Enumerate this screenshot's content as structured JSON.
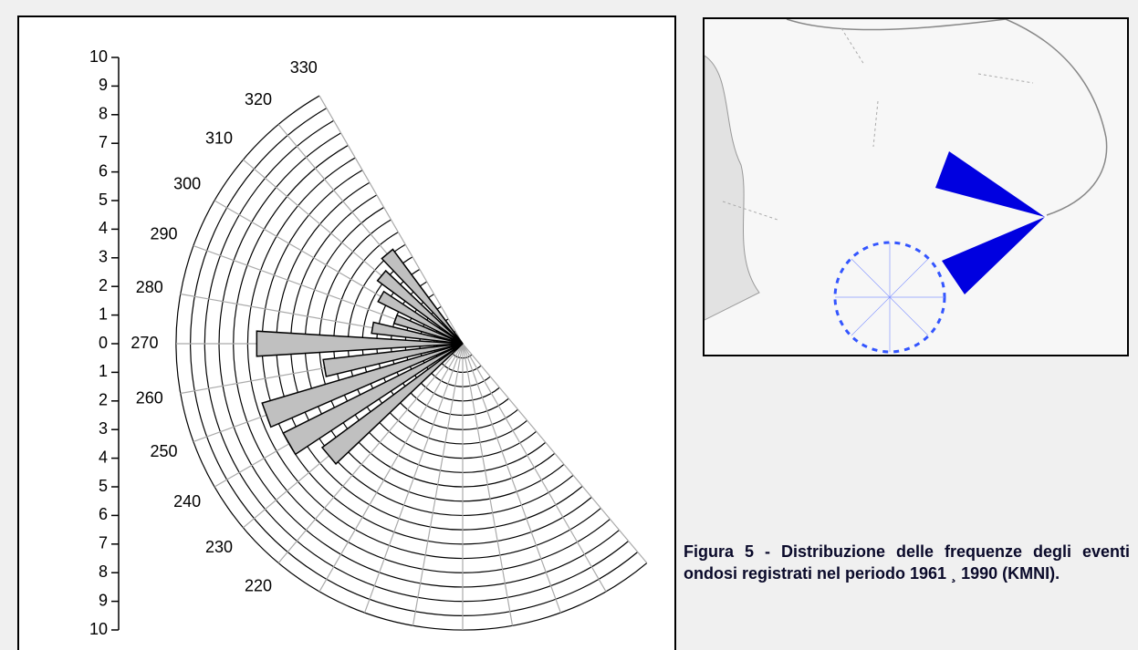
{
  "chart_data": {
    "type": "polar-bar",
    "categories": [
      220,
      230,
      240,
      250,
      260,
      270,
      280,
      290,
      300,
      310,
      320,
      330
    ],
    "values": [
      null,
      6.1,
      7.0,
      7.3,
      4.9,
      7.2,
      3.2,
      2.5,
      3.3,
      3.7,
      4.1,
      null
    ],
    "color": "#c0c0c0",
    "ylim": [
      -10,
      10
    ],
    "yticks": [
      {
        "value": -10,
        "label": "10"
      },
      {
        "value": -9,
        "label": "9"
      },
      {
        "value": -8,
        "label": "8"
      },
      {
        "value": -7,
        "label": "7"
      },
      {
        "value": -6,
        "label": "6"
      },
      {
        "value": -5,
        "label": "5"
      },
      {
        "value": -4,
        "label": "4"
      },
      {
        "value": -3,
        "label": "3"
      },
      {
        "value": -2,
        "label": "2"
      },
      {
        "value": -1,
        "label": "1"
      },
      0,
      1,
      2,
      3,
      4,
      5,
      6,
      7,
      8,
      9,
      10
    ],
    "rgrid": [
      0.5,
      1,
      1.5,
      2,
      2.5,
      3,
      3.5,
      4,
      4.5,
      5,
      5.5,
      6,
      6.5,
      7,
      7.5,
      8,
      8.5,
      9,
      9.5,
      10
    ],
    "grid": true
  },
  "caption": "Figura 5 - Distribuzione delle frequenze degli eventi ondosi registrati nel periodo 1961 ¸ 1990 (KMNI)."
}
